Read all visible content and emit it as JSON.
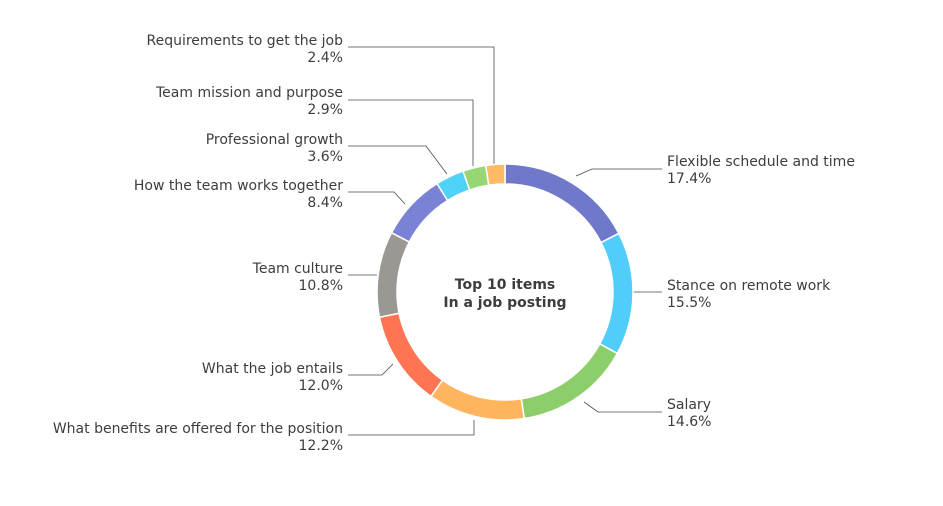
{
  "chart_data": {
    "type": "pie",
    "variant": "donut",
    "center_title": [
      "Top 10 items",
      "In a job posting"
    ],
    "legend": "none",
    "slices": [
      {
        "label": "Flexible schedule and time",
        "value": 17.4,
        "value_label": "17.4%",
        "color": "#7079c9"
      },
      {
        "label": "Stance on remote work",
        "value": 15.5,
        "value_label": "15.5%",
        "color": "#50cdfb"
      },
      {
        "label": "Salary",
        "value": 14.6,
        "value_label": "14.6%",
        "color": "#8ccf6a"
      },
      {
        "label": "What benefits are offered for the position",
        "value": 12.2,
        "value_label": "12.2%",
        "color": "#ffb55e"
      },
      {
        "label": "What the job entails",
        "value": 12.0,
        "value_label": "12.0%",
        "color": "#ff7452"
      },
      {
        "label": "Team culture",
        "value": 10.8,
        "value_label": "10.8%",
        "color": "#9b9893"
      },
      {
        "label": "How the team works together",
        "value": 8.4,
        "value_label": "8.4%",
        "color": "#7a82d6"
      },
      {
        "label": "Professional growth",
        "value": 3.6,
        "value_label": "3.6%",
        "color": "#4fd2f8"
      },
      {
        "label": "Team mission and purpose",
        "value": 2.9,
        "value_label": "2.9%",
        "color": "#96d673"
      },
      {
        "label": "Requirements to get the job",
        "value": 2.4,
        "value_label": "2.4%",
        "color": "#ffba66"
      }
    ]
  }
}
